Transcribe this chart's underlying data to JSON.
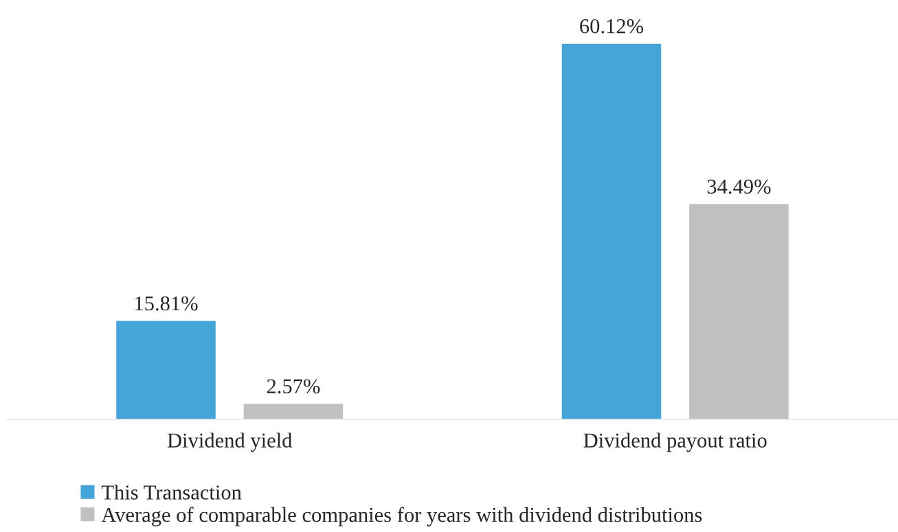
{
  "chart_data": {
    "type": "bar",
    "categories": [
      "Dividend yield",
      "Dividend payout ratio"
    ],
    "series": [
      {
        "name": "This Transaction",
        "color": "#45a5d8",
        "values": [
          15.81,
          60.12
        ],
        "value_labels": [
          "15.81%",
          "60.12%"
        ]
      },
      {
        "name": "Average of comparable companies for years with dividend distributions",
        "color": "#bfc0c2",
        "values": [
          2.57,
          34.49
        ],
        "value_labels": [
          "2.57%",
          "34.49%"
        ]
      }
    ],
    "legend": "bottom"
  }
}
